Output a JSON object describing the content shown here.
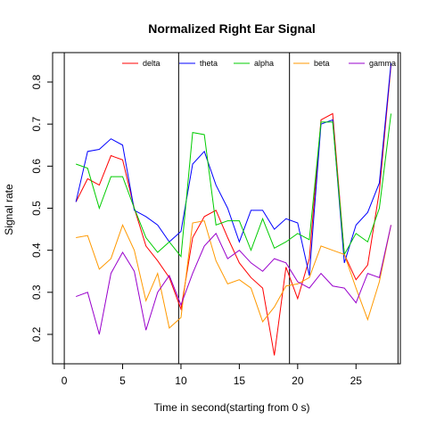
{
  "chart_data": {
    "type": "line",
    "title": "Normalized Right Ear Signal",
    "xlabel": "Time in second(starting from 0 s)",
    "ylabel": "Signal rate",
    "xlim": [
      -1,
      28.8
    ],
    "ylim": [
      0.13,
      0.87
    ],
    "xticks": [
      0,
      5,
      10,
      15,
      20,
      25
    ],
    "yticks": [
      0.2,
      0.3,
      0.4,
      0.5,
      0.6,
      0.7,
      0.8
    ],
    "vlines": [
      0,
      9.8,
      19.3,
      28.6
    ],
    "legend_position": "top",
    "x": [
      1,
      2,
      3,
      4,
      5,
      6,
      7,
      8,
      9,
      10,
      11,
      12,
      13,
      14,
      15,
      16,
      17,
      18,
      19,
      20,
      21,
      22,
      23,
      24,
      25,
      26,
      27,
      28
    ],
    "series": [
      {
        "name": "delta",
        "color": "#ff0000",
        "values": [
          0.515,
          0.57,
          0.555,
          0.625,
          0.615,
          0.5,
          0.41,
          0.375,
          0.335,
          0.26,
          0.43,
          0.48,
          0.495,
          0.43,
          0.37,
          0.335,
          0.31,
          0.15,
          0.36,
          0.285,
          0.38,
          0.71,
          0.725,
          0.39,
          0.33,
          0.365,
          0.54,
          0.84
        ]
      },
      {
        "name": "theta",
        "color": "#0000ff",
        "values": [
          0.515,
          0.635,
          0.64,
          0.665,
          0.65,
          0.495,
          0.48,
          0.46,
          0.42,
          0.445,
          0.605,
          0.635,
          0.555,
          0.5,
          0.42,
          0.495,
          0.495,
          0.45,
          0.475,
          0.465,
          0.34,
          0.7,
          0.71,
          0.37,
          0.46,
          0.49,
          0.56,
          0.845
        ]
      },
      {
        "name": "alpha",
        "color": "#00cc00",
        "values": [
          0.605,
          0.595,
          0.5,
          0.575,
          0.575,
          0.5,
          0.43,
          0.395,
          0.42,
          0.385,
          0.68,
          0.675,
          0.46,
          0.47,
          0.47,
          0.4,
          0.475,
          0.405,
          0.42,
          0.44,
          0.425,
          0.705,
          0.705,
          0.39,
          0.44,
          0.42,
          0.5,
          0.725
        ]
      },
      {
        "name": "beta",
        "color": "#ff9900",
        "values": [
          0.43,
          0.435,
          0.355,
          0.38,
          0.46,
          0.4,
          0.28,
          0.345,
          0.215,
          0.24,
          0.465,
          0.47,
          0.375,
          0.32,
          0.33,
          0.31,
          0.23,
          0.265,
          0.315,
          0.32,
          0.335,
          0.41,
          0.4,
          0.39,
          0.31,
          0.235,
          0.325,
          0.46
        ]
      },
      {
        "name": "gamma",
        "color": "#9900cc",
        "values": [
          0.29,
          0.3,
          0.2,
          0.345,
          0.395,
          0.35,
          0.21,
          0.3,
          0.34,
          0.27,
          0.345,
          0.41,
          0.44,
          0.38,
          0.4,
          0.37,
          0.35,
          0.38,
          0.37,
          0.325,
          0.31,
          0.345,
          0.315,
          0.31,
          0.275,
          0.345,
          0.335,
          0.46
        ]
      }
    ]
  }
}
